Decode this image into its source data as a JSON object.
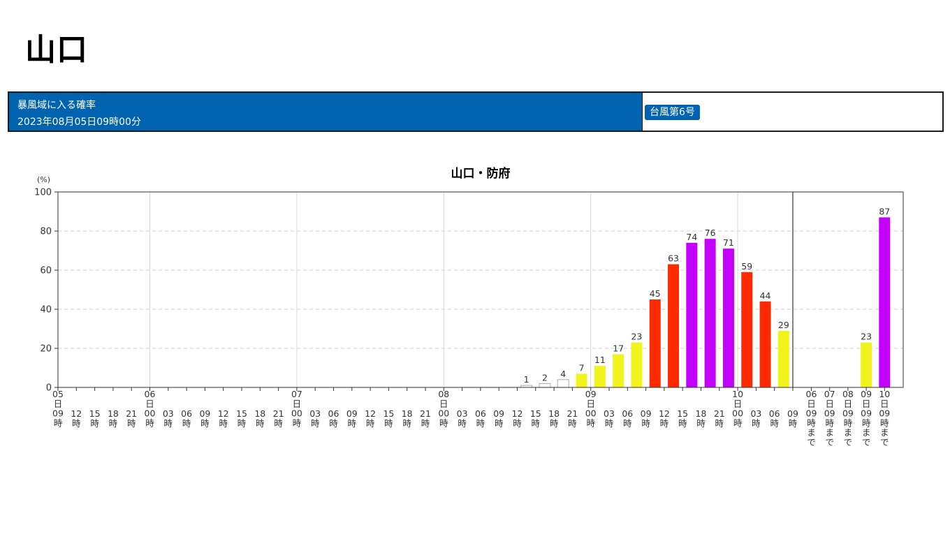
{
  "page": {
    "title": "山口"
  },
  "info_bar": {
    "label": "暴風域に入る確率",
    "datetime": "2023年08月05日09時00分",
    "typhoon": "台風第6号"
  },
  "colors": {
    "header_blue": "#0063b0",
    "level_white": "#ffffff",
    "level_yellow": "#f2f21d",
    "level_red": "#ff2a00",
    "level_purple": "#c300ff"
  },
  "chart_data": {
    "type": "bar",
    "title": "山口・防府",
    "ylabel": "(%)",
    "ylim": [
      0,
      100
    ],
    "yticks": [
      0,
      20,
      40,
      60,
      80,
      100
    ],
    "grid": true,
    "hourly": {
      "categories": [
        "05日09時",
        "12時",
        "15時",
        "18時",
        "21時",
        "06日00時",
        "03時",
        "06時",
        "09時",
        "12時",
        "15時",
        "18時",
        "21時",
        "07日00時",
        "03時",
        "06時",
        "09時",
        "12時",
        "15時",
        "18時",
        "21時",
        "08日00時",
        "03時",
        "06時",
        "09時",
        "12時",
        "15時",
        "18時",
        "21時",
        "09日00時",
        "03時",
        "06時",
        "09時",
        "12時",
        "15時",
        "18時",
        "21時",
        "10日00時",
        "03時",
        "06時",
        "09時"
      ],
      "tick_labels": [
        [
          "05",
          "日",
          "09",
          "時"
        ],
        [
          "12",
          "時"
        ],
        [
          "15",
          "時"
        ],
        [
          "18",
          "時"
        ],
        [
          "21",
          "時"
        ],
        [
          "06",
          "日",
          "00",
          "時"
        ],
        [
          "03",
          "時"
        ],
        [
          "06",
          "時"
        ],
        [
          "09",
          "時"
        ],
        [
          "12",
          "時"
        ],
        [
          "15",
          "時"
        ],
        [
          "18",
          "時"
        ],
        [
          "21",
          "時"
        ],
        [
          "07",
          "日",
          "00",
          "時"
        ],
        [
          "03",
          "時"
        ],
        [
          "06",
          "時"
        ],
        [
          "09",
          "時"
        ],
        [
          "12",
          "時"
        ],
        [
          "15",
          "時"
        ],
        [
          "18",
          "時"
        ],
        [
          "21",
          "時"
        ],
        [
          "08",
          "日",
          "00",
          "時"
        ],
        [
          "03",
          "時"
        ],
        [
          "06",
          "時"
        ],
        [
          "09",
          "時"
        ],
        [
          "12",
          "時"
        ],
        [
          "15",
          "時"
        ],
        [
          "18",
          "時"
        ],
        [
          "21",
          "時"
        ],
        [
          "09",
          "日",
          "00",
          "時"
        ],
        [
          "03",
          "時"
        ],
        [
          "06",
          "時"
        ],
        [
          "09",
          "時"
        ],
        [
          "12",
          "時"
        ],
        [
          "15",
          "時"
        ],
        [
          "18",
          "時"
        ],
        [
          "21",
          "時"
        ],
        [
          "10",
          "日",
          "00",
          "時"
        ],
        [
          "03",
          "時"
        ],
        [
          "06",
          "時"
        ],
        [
          "09",
          "時"
        ]
      ],
      "day_boundaries": [
        5,
        13,
        21,
        29,
        37
      ],
      "bars": [
        {
          "slot": 26,
          "value": 1,
          "level": "white"
        },
        {
          "slot": 27,
          "value": 2,
          "level": "white"
        },
        {
          "slot": 28,
          "value": 4,
          "level": "white"
        },
        {
          "slot": 29,
          "value": 7,
          "level": "yellow"
        },
        {
          "slot": 30,
          "value": 11,
          "level": "yellow"
        },
        {
          "slot": 31,
          "value": 17,
          "level": "yellow"
        },
        {
          "slot": 32,
          "value": 23,
          "level": "yellow"
        },
        {
          "slot": 33,
          "value": 45,
          "level": "red"
        },
        {
          "slot": 34,
          "value": 63,
          "level": "red"
        },
        {
          "slot": 35,
          "value": 74,
          "level": "purple"
        },
        {
          "slot": 36,
          "value": 76,
          "level": "purple"
        },
        {
          "slot": 37,
          "value": 71,
          "level": "purple"
        },
        {
          "slot": 38,
          "value": 59,
          "level": "red"
        },
        {
          "slot": 39,
          "value": 44,
          "level": "red"
        },
        {
          "slot": 40,
          "value": 29,
          "level": "yellow"
        }
      ]
    },
    "daily": {
      "tick_labels": [
        [
          "06",
          "日",
          "09",
          "時",
          "ま",
          "で"
        ],
        [
          "07",
          "日",
          "09",
          "時",
          "ま",
          "で"
        ],
        [
          "08",
          "日",
          "09",
          "時",
          "ま",
          "で"
        ],
        [
          "09",
          "日",
          "09",
          "時",
          "ま",
          "で"
        ],
        [
          "10",
          "日",
          "09",
          "時",
          "ま",
          "で"
        ]
      ],
      "bars": [
        {
          "slot": 3,
          "value": 23,
          "level": "yellow"
        },
        {
          "slot": 4,
          "value": 87,
          "level": "purple"
        }
      ]
    }
  }
}
